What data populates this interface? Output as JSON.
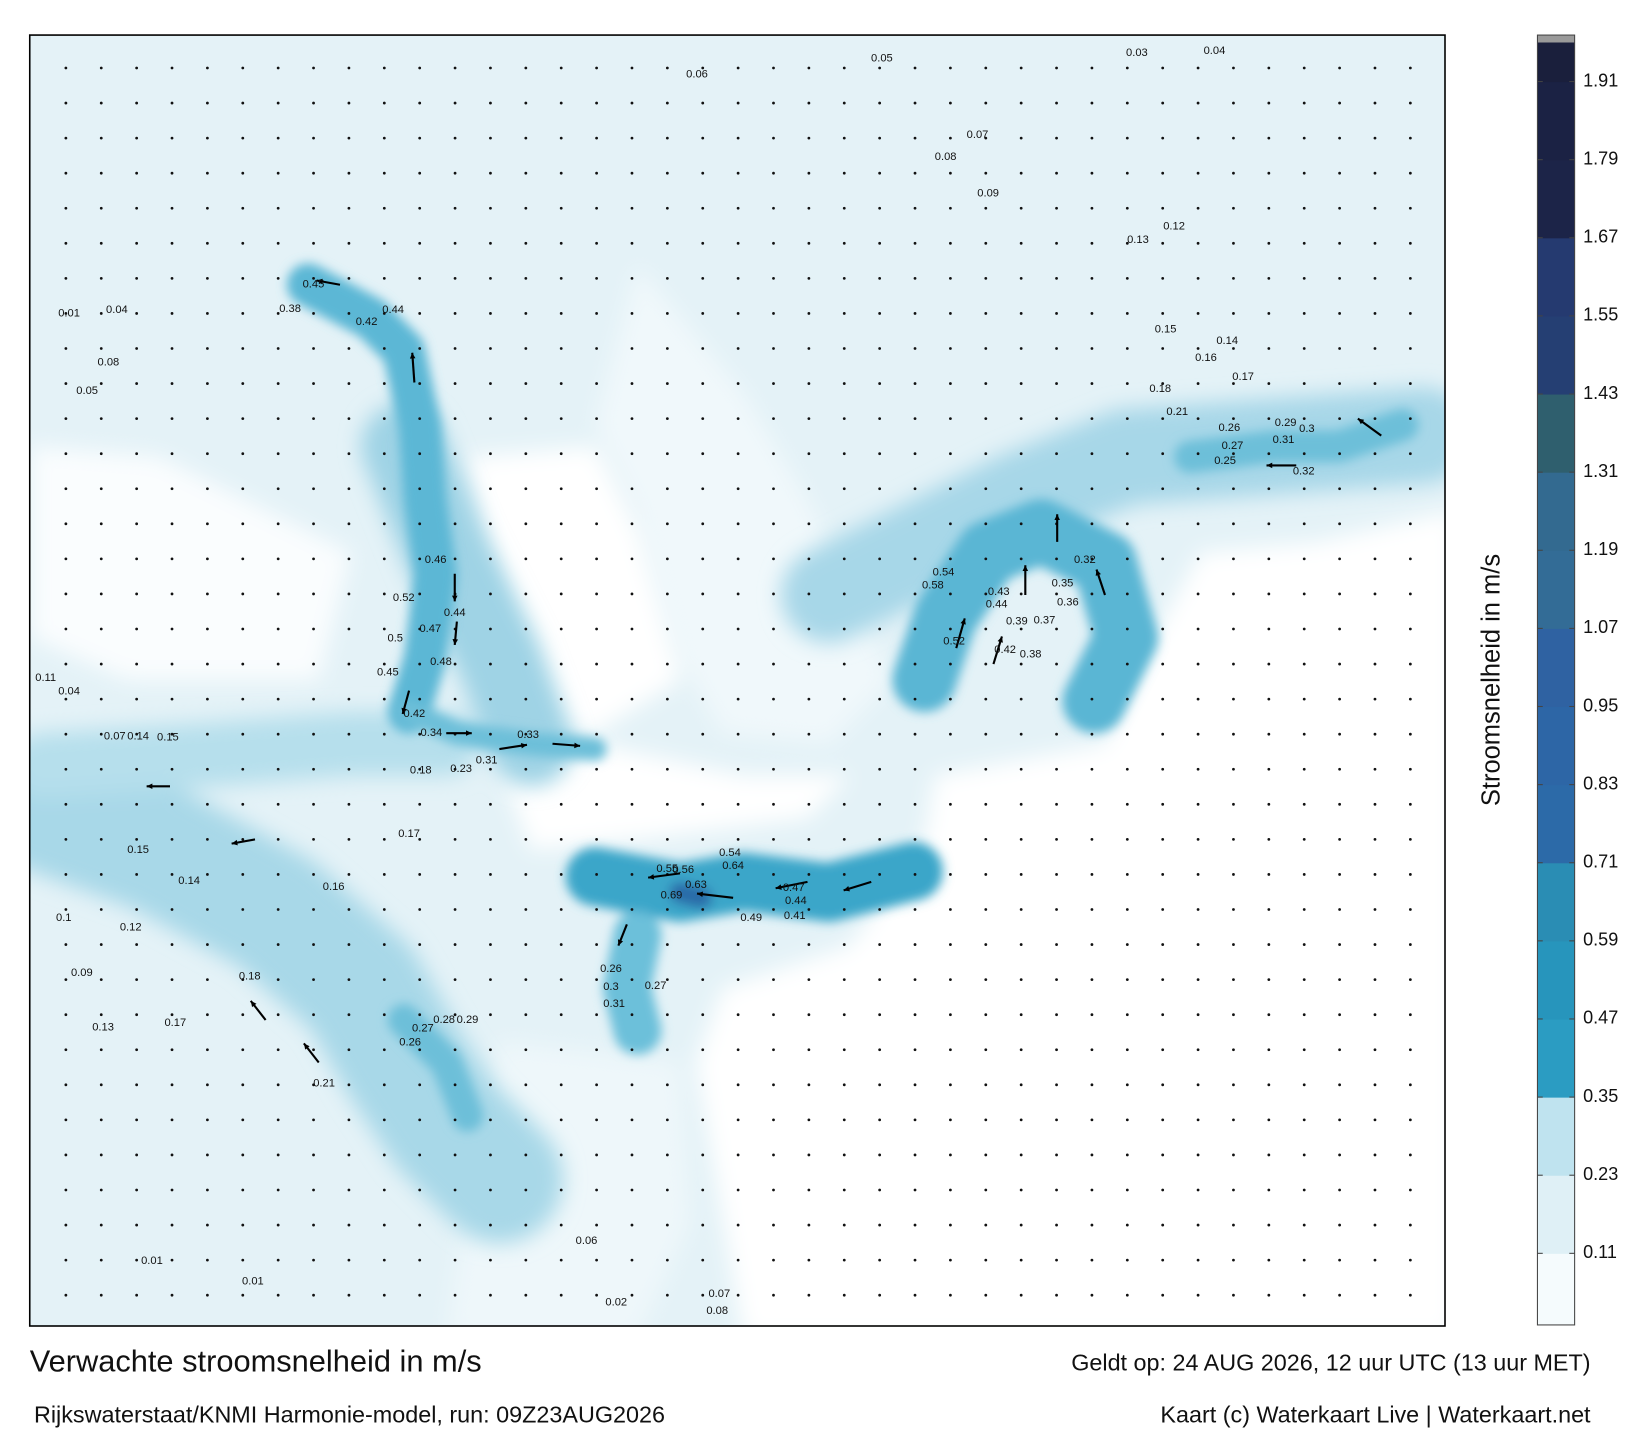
{
  "title": "Verwachte stroomsnelheid in m/s",
  "valid": "Geldt op: 24 AUG 2026, 12 uur UTC (13 uur MET)",
  "source": "Rijkswaterstaat/KNMI Harmonie-model, run: 09Z23AUG2026",
  "credit": "Kaart (c) Waterkaart Live | Waterkaart.net",
  "colorbar": {
    "label": "Stroomsnelheid in m/s",
    "clim": [
      0,
      1.97
    ],
    "ticks": [
      0.11,
      0.23,
      0.35,
      0.47,
      0.59,
      0.71,
      0.83,
      0.95,
      1.07,
      1.19,
      1.31,
      1.43,
      1.55,
      1.67,
      1.79,
      1.91
    ],
    "colors": [
      "#f5fbfd",
      "#dff0f6",
      "#bfe3ef",
      "#2b9cc2",
      "#2795bc",
      "#2a8db4",
      "#2c6aa8",
      "#2d66a6",
      "#2f62a2",
      "#336c96",
      "#336a90",
      "#2f5f6e",
      "#253f73",
      "#253a70",
      "#1c2448",
      "#1b2244",
      "#1a1f3c"
    ]
  },
  "map_labels": [
    "0.45",
    "0.44",
    "0.38",
    "0.42",
    "0.46",
    "0.52",
    "0.5",
    "0.47",
    "0.44",
    "0.48",
    "0.45",
    "0.42",
    "0.34",
    "0.33",
    "0.63",
    "0.69",
    "0.64",
    "0.55",
    "0.56",
    "0.54",
    "0.47",
    "0.44",
    "0.49",
    "0.41",
    "0.58",
    "0.52",
    "0.43",
    "0.44",
    "0.54",
    "0.39",
    "0.37",
    "0.42",
    "0.38",
    "0.36",
    "0.35",
    "0.32",
    "0.3",
    "0.29",
    "0.31",
    "0.32",
    "0.26",
    "0.27",
    "0.25",
    "0.21",
    "0.18",
    "0.17",
    "0.16",
    "0.15",
    "0.14",
    "0.12",
    "0.13",
    "0.09",
    "0.08",
    "0.07",
    "0.06",
    "0.05",
    "0.04",
    "0.03",
    "0.18",
    "0.23",
    "0.31",
    "0.17",
    "0.16",
    "0.12",
    "0.13",
    "0.17",
    "0.21",
    "0.18",
    "0.15",
    "0.14",
    "0.1",
    "0.09",
    "0.01",
    "0.01",
    "0.06",
    "0.07",
    "0.08",
    "0.02",
    "0.29",
    "0.28",
    "0.27",
    "0.26",
    "0.3",
    "0.31",
    "0.26",
    "0.27",
    "0.01",
    "0.04",
    "0.08",
    "0.05",
    "0.11",
    "0.04",
    "0.07",
    "0.14",
    "0.15"
  ]
}
